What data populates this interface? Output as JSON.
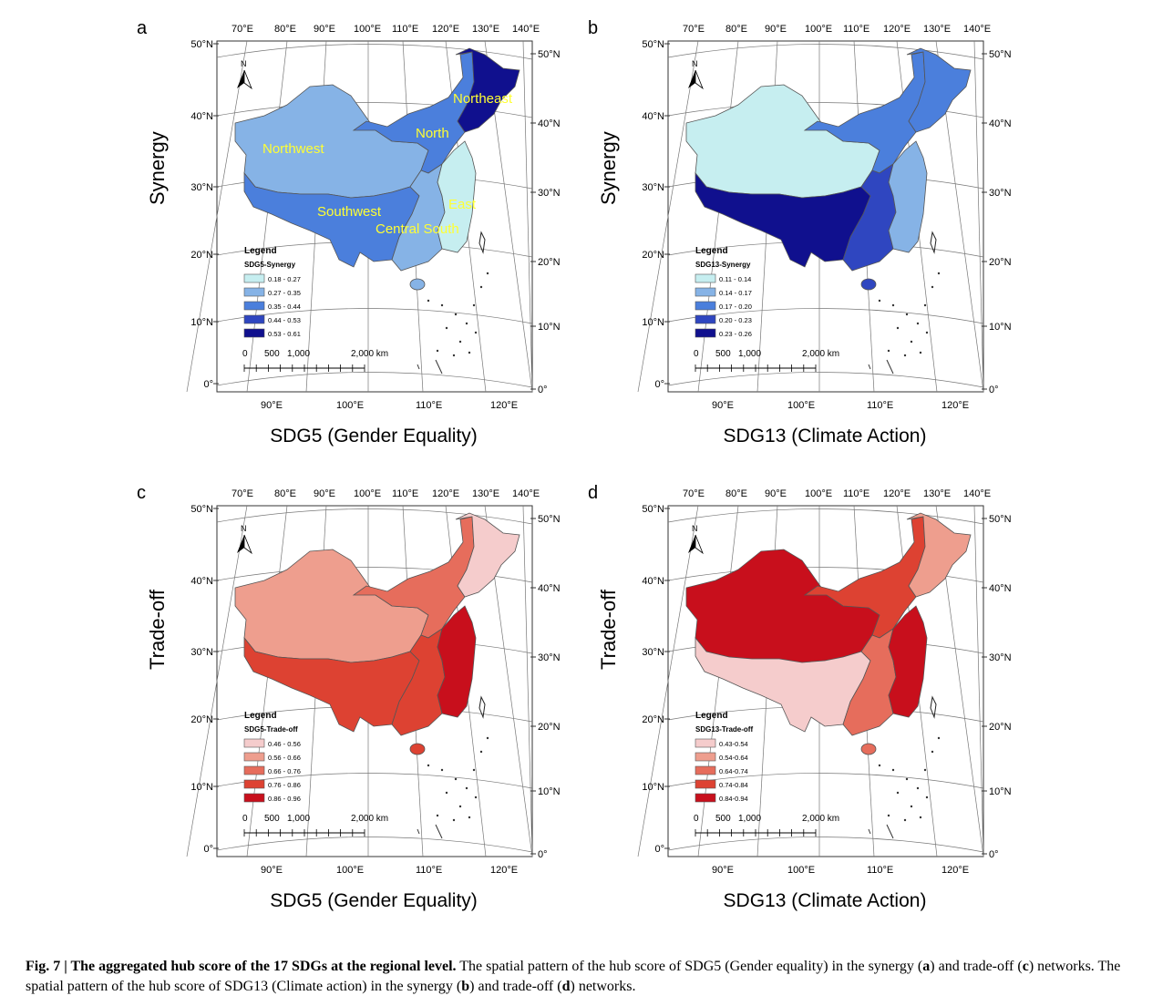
{
  "figure": {
    "caption_label": "Fig. 7 | The aggregated hub score of the 17 SDGs at the regional level.",
    "caption_text": " The spatial pattern of the hub score of SDG5 (Gender equality) in the synergy (",
    "caption_a": "a",
    "caption_mid1": ") and trade-off (",
    "caption_c": "c",
    "caption_mid2": ") networks. The spatial pattern of the hub score of SDG13 (Climate action) in the synergy (",
    "caption_b": "b",
    "caption_mid3": ") and trade-off (",
    "caption_d": "d",
    "caption_end": ") networks."
  },
  "axes": {
    "top_lon": [
      "70°E",
      "80°E",
      "90°E",
      "100°E",
      "110°E",
      "120°E",
      "130°E",
      "140°E"
    ],
    "bottom_lon": [
      "90°E",
      "100°E",
      "110°E",
      "120°E"
    ],
    "left_lat": [
      "50°N",
      "40°N",
      "30°N",
      "20°N",
      "10°N",
      "0°"
    ],
    "right_lat": [
      "50°N",
      "40°N",
      "30°N",
      "20°N",
      "10°N",
      "0°"
    ],
    "north": "N",
    "scale_labels": [
      "0",
      "500",
      "1,000",
      "2,000 km"
    ]
  },
  "panels": [
    {
      "letter": "a",
      "ylabel": "Synergy",
      "subtitle": "SDG5 (Gender Equality)",
      "legend_title": "Legend",
      "legend_sub": "SDG5-Synergy",
      "classes": [
        "0.18 - 0.27",
        "0.27 - 0.35",
        "0.35 - 0.44",
        "0.44 - 0.53",
        "0.53 - 0.61"
      ],
      "colors": [
        "#c6eef0",
        "#86b3e6",
        "#4b7fdc",
        "#2f46c0",
        "#10108e"
      ],
      "region_class": {
        "northwest": 1,
        "southwest": 2,
        "north": 2,
        "northeast": 4,
        "east": 0,
        "central_south": 1
      },
      "region_labels": {
        "northwest": "Northwest",
        "north": "North",
        "northeast": "Northeast",
        "southwest": "Southwest",
        "east": "East",
        "central_south": "Central South"
      }
    },
    {
      "letter": "b",
      "ylabel": "Synergy",
      "subtitle": "SDG13 (Climate Action)",
      "legend_title": "Legend",
      "legend_sub": "SDG13-Synergy",
      "classes": [
        "0.11 - 0.14",
        "0.14 - 0.17",
        "0.17 - 0.20",
        "0.20 - 0.23",
        "0.23 - 0.26"
      ],
      "colors": [
        "#c6eef0",
        "#86b3e6",
        "#4b7fdc",
        "#2f46c0",
        "#10108e"
      ],
      "region_class": {
        "northwest": 0,
        "southwest": 4,
        "north": 2,
        "northeast": 2,
        "east": 1,
        "central_south": 3
      },
      "region_labels": {}
    },
    {
      "letter": "c",
      "ylabel": "Trade-off",
      "subtitle": "SDG5 (Gender Equality)",
      "legend_title": "Legend",
      "legend_sub": "SDG5-Trade-off",
      "classes": [
        "0.46 - 0.56",
        "0.56 - 0.66",
        "0.66 - 0.76",
        "0.76 - 0.86",
        "0.86 - 0.96"
      ],
      "colors": [
        "#f5cccc",
        "#ee9e8e",
        "#e66d5c",
        "#dd4232",
        "#c80f1c"
      ],
      "region_class": {
        "northwest": 1,
        "southwest": 3,
        "north": 2,
        "northeast": 0,
        "east": 4,
        "central_south": 3
      },
      "region_labels": {}
    },
    {
      "letter": "d",
      "ylabel": "Trade-off",
      "subtitle": "SDG13 (Climate Action)",
      "legend_title": "Legend",
      "legend_sub": "SDG13-Trade-off",
      "classes": [
        "0.43-0.54",
        "0.54-0.64",
        "0.64-0.74",
        "0.74-0.84",
        "0.84-0.94"
      ],
      "colors": [
        "#f5cccc",
        "#ee9e8e",
        "#e66d5c",
        "#dd4232",
        "#c80f1c"
      ],
      "region_class": {
        "northwest": 4,
        "southwest": 0,
        "north": 3,
        "northeast": 1,
        "east": 4,
        "central_south": 2
      },
      "region_labels": {}
    }
  ]
}
